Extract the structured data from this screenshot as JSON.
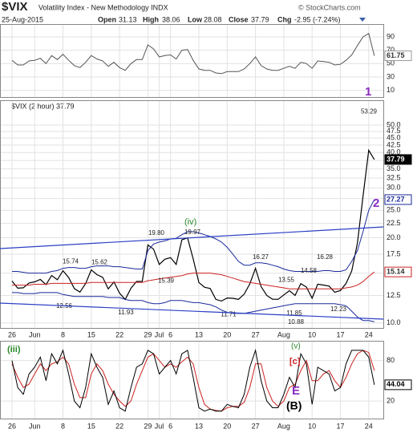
{
  "header": {
    "symbol": "$VIX",
    "name": "Volatility Index - New Methodology INDX",
    "date": "25-Aug-2015",
    "open_label": "Open",
    "open": 31.13,
    "high_label": "High",
    "high": 38.06,
    "low_label": "Low",
    "low": 28.08,
    "close_label": "Close",
    "close": 37.79,
    "chg_label": "Chg",
    "chg": "-2.95 (-7.24%)",
    "source": "© StockCharts.com"
  },
  "chart_data": [
    {
      "type": "line",
      "color": "#555555",
      "ylim": [
        0,
        108
      ],
      "yticks": [
        10,
        30,
        50,
        70,
        90
      ],
      "values": [
        55,
        48,
        48,
        54,
        55,
        58,
        50,
        62,
        56,
        64,
        55,
        47,
        44,
        52,
        62,
        57,
        54,
        46,
        52,
        44,
        40,
        50,
        56,
        56,
        78,
        72,
        60,
        62,
        63,
        57,
        70,
        71,
        55,
        42,
        40,
        40,
        36,
        35,
        38,
        38,
        38,
        42,
        50,
        60,
        47,
        42,
        40,
        40,
        43,
        46,
        43,
        52,
        50,
        43,
        54,
        53,
        52,
        48,
        49,
        55,
        63,
        77,
        90,
        95,
        61.75
      ]
    },
    {
      "type": "line",
      "legend": "$VIX (2 hour) 37.79",
      "log_scale": true,
      "ylim": [
        9.6,
        60.8
      ],
      "yticks": [
        {
          "value": 10,
          "label": "10.0"
        },
        12.5,
        {
          "value": 15,
          "label": "15.0"
        },
        17.5,
        {
          "value": 20,
          "label": "20.0"
        },
        22.5,
        {
          "value": 25,
          "label": "25.0"
        },
        27.5,
        {
          "value": 30,
          "label": "30.0"
        },
        32.5,
        {
          "value": 35,
          "label": "35.0"
        },
        37.5,
        {
          "value": 40,
          "label": "40.0"
        },
        42.5,
        {
          "value": 45,
          "label": "45.0"
        },
        47.5,
        {
          "value": 50,
          "label": "50.0"
        }
      ],
      "categories": [
        "26",
        null,
        null,
        null,
        "Jun",
        null,
        null,
        null,
        null,
        "8",
        null,
        null,
        null,
        null,
        "15",
        null,
        null,
        null,
        null,
        "22",
        null,
        null,
        null,
        null,
        "29",
        null,
        "Jul",
        null,
        "6",
        null,
        null,
        null,
        null,
        "13",
        null,
        null,
        null,
        null,
        "20",
        null,
        null,
        null,
        null,
        "27",
        null,
        null,
        null,
        null,
        "Aug",
        null,
        null,
        null,
        null,
        "10",
        null,
        null,
        null,
        null,
        "17",
        null,
        null,
        null,
        null,
        "24",
        null
      ],
      "series": [
        {
          "color": "#000000",
          "values": [
            14.06,
            13.27,
            13.31,
            13.84,
            13.97,
            14.24,
            13.66,
            14.71,
            14.21,
            15.29,
            14.47,
            13.22,
            12.85,
            13.78,
            15.39,
            14.81,
            14.5,
            13.19,
            13.96,
            12.74,
            12.11,
            13.26,
            14.01,
            14.02,
            18.85,
            18.23,
            16.09,
            16.79,
            17.01,
            16.09,
            19.66,
            19.97,
            16.83,
            13.9,
            13.37,
            13.23,
            12.11,
            11.95,
            12.25,
            12.22,
            12.12,
            12.64,
            13.74,
            15.6,
            13.44,
            12.5,
            12.13,
            12.12,
            12.56,
            13,
            12.51,
            13.77,
            13.39,
            12.23,
            13.71,
            13.61,
            13.49,
            12.83,
            13.02,
            13.79,
            15.25,
            19.14,
            28.03,
            40.74,
            37.79
          ]
        },
        {
          "color": "#1a2a9a",
          "values": [
            15.2,
            15.2,
            15.1,
            15,
            15,
            15,
            15,
            15.2,
            15.3,
            15.6,
            15.7,
            15.7,
            15.6,
            15.6,
            15.8,
            15.9,
            15.9,
            15.9,
            15.8,
            15.8,
            15.7,
            15.6,
            15.5,
            15.5,
            18,
            19,
            19.3,
            19.5,
            19.8,
            19.9,
            20.5,
            21,
            21,
            20.8,
            20.5,
            20.2,
            19.8,
            19.3,
            18.5,
            17.5,
            16.5,
            16,
            16,
            16.3,
            16.3,
            16.2,
            16,
            15.8,
            15.5,
            15.3,
            15.2,
            15.2,
            15.2,
            15.2,
            15.2,
            15.3,
            15.3,
            15.2,
            15.2,
            15.4,
            16.5,
            18,
            21,
            25,
            27.27
          ]
        },
        {
          "color": "#1a2a9a",
          "values": [
            12.8,
            12.8,
            12.7,
            12.7,
            12.7,
            12.8,
            12.8,
            12.8,
            12.8,
            12.6,
            12.5,
            12.4,
            12.4,
            12.4,
            12.4,
            12.4,
            12.4,
            12.3,
            12.3,
            12.3,
            12.1,
            12,
            12,
            12,
            11.8,
            11.7,
            11.7,
            11.8,
            12,
            12,
            12,
            11.9,
            11.8,
            11.8,
            11.7,
            11.6,
            11.4,
            11.1,
            10.9,
            10.8,
            10.8,
            10.8,
            10.9,
            11,
            11.1,
            11.2,
            11.3,
            11.4,
            11.5,
            11.6,
            11.7,
            11.7,
            11.7,
            11.7,
            11.7,
            11.7,
            11.7,
            11.7,
            11.6,
            11.5,
            11,
            10.5,
            10.2,
            10.2,
            10.1
          ]
        },
        {
          "color": "#cc2222",
          "values": [
            13.6,
            13.6,
            13.6,
            13.6,
            13.7,
            13.7,
            13.7,
            13.8,
            13.8,
            13.8,
            13.8,
            13.8,
            13.8,
            13.8,
            13.9,
            13.9,
            13.9,
            13.9,
            13.9,
            13.9,
            13.9,
            13.9,
            13.9,
            13.9,
            14.1,
            14.2,
            14.3,
            14.4,
            14.5,
            14.6,
            14.7,
            14.9,
            15,
            15,
            15,
            15,
            14.9,
            14.8,
            14.6,
            14.4,
            14.2,
            14,
            13.9,
            13.8,
            13.7,
            13.6,
            13.5,
            13.4,
            13.3,
            13.2,
            13.2,
            13.2,
            13.2,
            13.2,
            13.2,
            13.2,
            13.2,
            13.2,
            13.2,
            13.3,
            13.4,
            13.6,
            14,
            14.6,
            15.14
          ]
        }
      ],
      "point_labels": [
        53.29,
        {
          "value": 19.8,
          "label": "19.80"
        },
        19.97,
        15.74,
        15.62,
        15.39,
        12.56,
        11.93,
        11.71,
        16.27,
        13.55,
        14.58,
        {
          "value": 16.28,
          "label": "16.28"
        },
        11.85,
        10.88,
        12.23
      ],
      "annotations": [
        "1",
        "2",
        "(iv)"
      ]
    },
    {
      "type": "line",
      "ylim": [
        -6,
        108
      ],
      "yticks": [
        20,
        80
      ],
      "categories": [
        "26",
        null,
        null,
        null,
        "Jun",
        null,
        null,
        null,
        null,
        "8",
        null,
        null,
        null,
        null,
        "15",
        null,
        null,
        null,
        null,
        "22",
        null,
        null,
        null,
        null,
        "29",
        null,
        "Jul",
        null,
        "6",
        null,
        null,
        null,
        null,
        "13",
        null,
        null,
        null,
        null,
        "20",
        null,
        null,
        null,
        null,
        "27",
        null,
        null,
        null,
        null,
        "Aug",
        null,
        null,
        null,
        null,
        "10",
        null,
        null,
        null,
        null,
        "17",
        null,
        null,
        null,
        null,
        "24",
        null
      ],
      "series": [
        {
          "color": "#cc2222",
          "values": [
            75,
            55,
            40,
            45,
            60,
            75,
            65,
            75,
            78,
            85,
            75,
            45,
            25,
            25,
            60,
            75,
            65,
            45,
            30,
            20,
            12,
            20,
            45,
            65,
            85,
            90,
            80,
            70,
            75,
            70,
            78,
            85,
            75,
            40,
            15,
            8,
            6,
            5,
            10,
            12,
            12,
            18,
            40,
            75,
            75,
            40,
            20,
            12,
            20,
            40,
            45,
            65,
            80,
            50,
            50,
            60,
            65,
            50,
            40,
            55,
            75,
            90,
            95,
            92,
            65
          ]
        },
        {
          "color": "#000000",
          "values": [
            80,
            40,
            30,
            60,
            70,
            85,
            50,
            90,
            75,
            95,
            60,
            20,
            10,
            40,
            90,
            70,
            55,
            15,
            35,
            10,
            5,
            40,
            70,
            75,
            95,
            90,
            60,
            70,
            80,
            60,
            90,
            95,
            55,
            10,
            5,
            8,
            5,
            5,
            15,
            12,
            10,
            30,
            70,
            95,
            50,
            20,
            10,
            10,
            30,
            55,
            40,
            90,
            75,
            15,
            70,
            65,
            60,
            35,
            40,
            75,
            95,
            95,
            95,
            85,
            44.04
          ]
        }
      ],
      "annotations": [
        "(iii)",
        "(v)",
        "[c]",
        "E",
        "(B)"
      ]
    }
  ]
}
